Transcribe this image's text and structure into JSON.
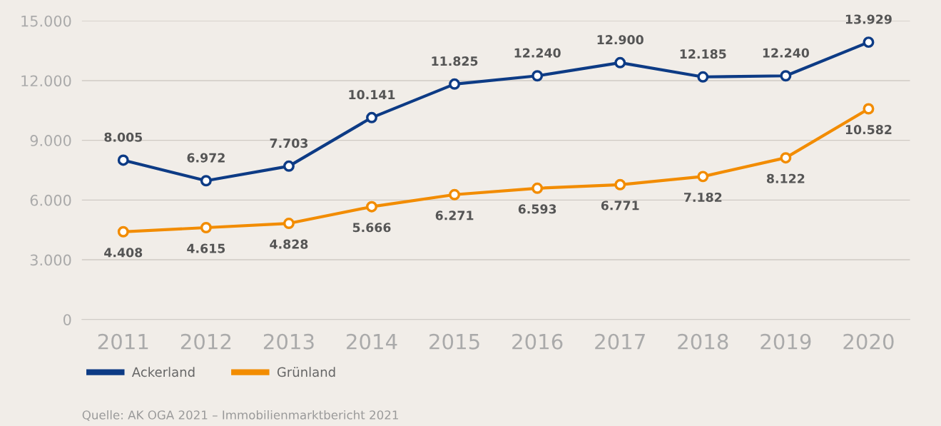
{
  "chart_data": {
    "type": "line",
    "categories": [
      "2011",
      "2012",
      "2013",
      "2014",
      "2015",
      "2016",
      "2017",
      "2018",
      "2019",
      "2020"
    ],
    "series": [
      {
        "name": "Ackerland",
        "color": "#0d3b85",
        "values": [
          8005,
          6972,
          7703,
          10141,
          11825,
          12240,
          12900,
          12185,
          12240,
          13929
        ],
        "value_labels": [
          "8.005",
          "6.972",
          "7.703",
          "10.141",
          "11.825",
          "12.240",
          "12.900",
          "12.185",
          "12.240",
          "13.929"
        ]
      },
      {
        "name": "Grünland",
        "color": "#f28c00",
        "values": [
          4408,
          4615,
          4828,
          5666,
          6271,
          6593,
          6771,
          7182,
          8122,
          10582
        ],
        "value_labels": [
          "4.408",
          "4.615",
          "4.828",
          "5.666",
          "6.271",
          "6.593",
          "6.771",
          "7.182",
          "8.122",
          "10.582"
        ]
      }
    ],
    "ylim": [
      0,
      15000
    ],
    "yticks": [
      {
        "value": 0,
        "label": "0"
      },
      {
        "value": 3000,
        "label": "3.000"
      },
      {
        "value": 6000,
        "label": "6.000"
      },
      {
        "value": 9000,
        "label": "9.000"
      },
      {
        "value": 12000,
        "label": "12.000"
      },
      {
        "value": 15000,
        "label": "15.000"
      }
    ],
    "grid": "y",
    "legend": "bottom",
    "marker": "circle",
    "line_style": "solid",
    "annotations": [
      "Quelle: AK OGA 2021 – Immobilienmarktbericht 2021"
    ]
  }
}
